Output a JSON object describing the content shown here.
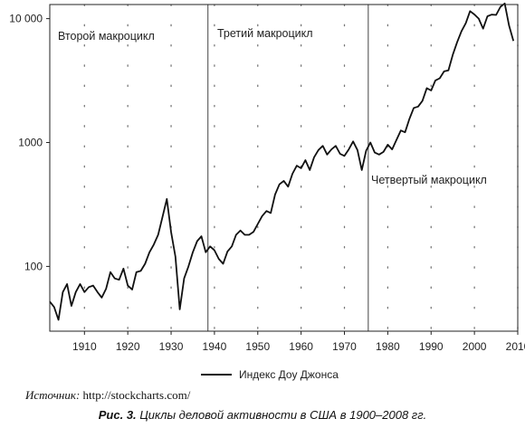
{
  "chart_data": {
    "type": "line",
    "yscale": "log",
    "ylim": [
      30,
      13000
    ],
    "xlim": [
      1902,
      2010
    ],
    "grid": "dotted",
    "legend_position": "bottom-center",
    "x_ticks": [
      1910,
      1920,
      1930,
      1940,
      1950,
      1960,
      1970,
      1980,
      1990,
      2000,
      2010
    ],
    "y_ticks": [
      {
        "value": 100,
        "label": "100"
      },
      {
        "value": 1000,
        "label": "1000"
      },
      {
        "value": 10000,
        "label": "10 000"
      }
    ],
    "dividers": [
      1938.5,
      1975.5
    ],
    "annotations": {
      "second": "Второй макроцикл",
      "third": "Третий макроцикл",
      "fourth": "Четвертый макроцикл"
    },
    "series": [
      {
        "name": "Индекс Доу Джонса",
        "color": "#111111",
        "points": [
          [
            1902,
            52
          ],
          [
            1903,
            47
          ],
          [
            1904,
            37
          ],
          [
            1905,
            62
          ],
          [
            1906,
            72
          ],
          [
            1907,
            48
          ],
          [
            1908,
            62
          ],
          [
            1909,
            72
          ],
          [
            1910,
            62
          ],
          [
            1911,
            68
          ],
          [
            1912,
            70
          ],
          [
            1913,
            62
          ],
          [
            1914,
            56
          ],
          [
            1915,
            66
          ],
          [
            1916,
            90
          ],
          [
            1917,
            80
          ],
          [
            1918,
            78
          ],
          [
            1919,
            96
          ],
          [
            1920,
            70
          ],
          [
            1921,
            65
          ],
          [
            1922,
            90
          ],
          [
            1923,
            92
          ],
          [
            1924,
            105
          ],
          [
            1925,
            130
          ],
          [
            1926,
            150
          ],
          [
            1927,
            180
          ],
          [
            1928,
            250
          ],
          [
            1929,
            350
          ],
          [
            1930,
            190
          ],
          [
            1931,
            120
          ],
          [
            1932,
            45
          ],
          [
            1933,
            80
          ],
          [
            1934,
            100
          ],
          [
            1935,
            130
          ],
          [
            1936,
            160
          ],
          [
            1937,
            175
          ],
          [
            1938,
            130
          ],
          [
            1939,
            145
          ],
          [
            1940,
            135
          ],
          [
            1941,
            115
          ],
          [
            1942,
            105
          ],
          [
            1943,
            132
          ],
          [
            1944,
            145
          ],
          [
            1945,
            180
          ],
          [
            1946,
            195
          ],
          [
            1947,
            180
          ],
          [
            1948,
            180
          ],
          [
            1949,
            190
          ],
          [
            1950,
            220
          ],
          [
            1951,
            255
          ],
          [
            1952,
            280
          ],
          [
            1953,
            270
          ],
          [
            1954,
            380
          ],
          [
            1955,
            460
          ],
          [
            1956,
            490
          ],
          [
            1957,
            440
          ],
          [
            1958,
            560
          ],
          [
            1959,
            650
          ],
          [
            1960,
            620
          ],
          [
            1961,
            720
          ],
          [
            1962,
            600
          ],
          [
            1963,
            760
          ],
          [
            1964,
            870
          ],
          [
            1965,
            940
          ],
          [
            1966,
            800
          ],
          [
            1967,
            880
          ],
          [
            1968,
            940
          ],
          [
            1969,
            810
          ],
          [
            1970,
            780
          ],
          [
            1971,
            880
          ],
          [
            1972,
            1020
          ],
          [
            1973,
            870
          ],
          [
            1974,
            600
          ],
          [
            1975,
            860
          ],
          [
            1976,
            1000
          ],
          [
            1977,
            830
          ],
          [
            1978,
            800
          ],
          [
            1979,
            840
          ],
          [
            1980,
            960
          ],
          [
            1981,
            880
          ],
          [
            1982,
            1050
          ],
          [
            1983,
            1250
          ],
          [
            1984,
            1210
          ],
          [
            1985,
            1550
          ],
          [
            1986,
            1900
          ],
          [
            1987,
            1950
          ],
          [
            1988,
            2170
          ],
          [
            1989,
            2750
          ],
          [
            1990,
            2630
          ],
          [
            1991,
            3170
          ],
          [
            1992,
            3300
          ],
          [
            1993,
            3750
          ],
          [
            1994,
            3830
          ],
          [
            1995,
            5100
          ],
          [
            1996,
            6450
          ],
          [
            1997,
            7900
          ],
          [
            1998,
            9200
          ],
          [
            1999,
            11500
          ],
          [
            2000,
            10800
          ],
          [
            2001,
            10000
          ],
          [
            2002,
            8300
          ],
          [
            2003,
            10450
          ],
          [
            2004,
            10780
          ],
          [
            2005,
            10720
          ],
          [
            2006,
            12460
          ],
          [
            2007,
            13260
          ],
          [
            2008,
            8780
          ],
          [
            2009,
            6600
          ]
        ]
      }
    ]
  },
  "source": {
    "label": "Источник:",
    "value": "http://stockcharts.com/"
  },
  "caption": {
    "prefix": "Рис. 3.",
    "text": "Циклы деловой активности в США в 1900–2008 гг."
  }
}
